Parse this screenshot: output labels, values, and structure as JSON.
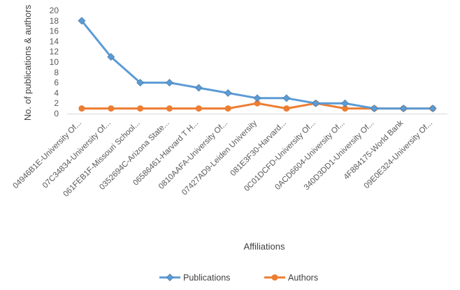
{
  "chart_data": {
    "type": "line",
    "title": "",
    "xlabel": "Affiliations",
    "ylabel": "No. of publications & authors",
    "ylim": [
      0,
      20
    ],
    "yticks": [
      0,
      2,
      4,
      6,
      8,
      10,
      12,
      14,
      16,
      18,
      20
    ],
    "grid": false,
    "legend_position": "bottom",
    "categories": [
      "04946B1E-University Of...",
      "07C34834-University Of...",
      "061FEB1F-Missouri School...",
      "0352694C-Arizona State...",
      "06586461-Harvard T H...",
      "0810AAFA-University Of...",
      "07427AD9-Leiden University",
      "081E3F30-Harvard...",
      "0C01DCFD-University Of...",
      "0ACD6604-University Of...",
      "340D3DD1-University Of...",
      "4F884175-World Bank",
      "09E0E324-University Of..."
    ],
    "series": [
      {
        "name": "Publications",
        "color": "#5B9BD5",
        "marker": "diamond",
        "values": [
          18,
          11,
          6,
          6,
          5,
          4,
          3,
          3,
          2,
          2,
          1,
          1,
          1
        ]
      },
      {
        "name": "Authors",
        "color": "#ED7D31",
        "marker": "circle",
        "values": [
          1,
          1,
          1,
          1,
          1,
          1,
          2,
          1,
          2,
          1,
          1,
          1,
          1
        ]
      }
    ]
  }
}
